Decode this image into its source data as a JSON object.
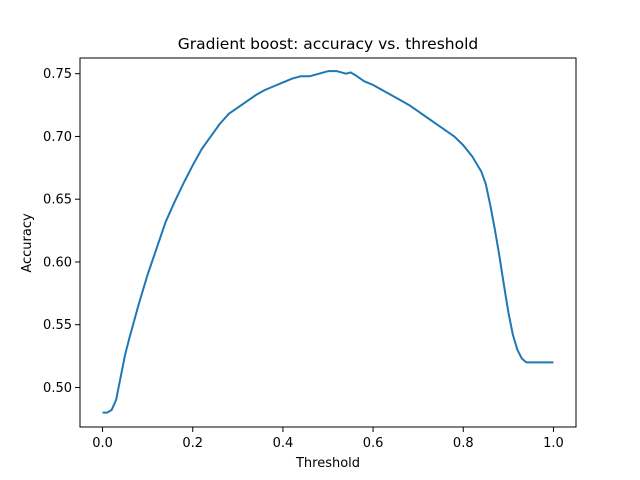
{
  "chart_data": {
    "type": "line",
    "title": "Gradient boost: accuracy vs. threshold",
    "xlabel": "Threshold",
    "ylabel": "Accuracy",
    "xlim": [
      -0.05,
      1.05
    ],
    "ylim": [
      0.4685,
      0.7625
    ],
    "grid": false,
    "legend": "none",
    "x_ticks": [
      0.0,
      0.2,
      0.4,
      0.6,
      0.8,
      1.0
    ],
    "x_tick_labels": [
      "0.0",
      "0.2",
      "0.4",
      "0.6",
      "0.8",
      "1.0"
    ],
    "y_ticks": [
      0.5,
      0.55,
      0.6,
      0.65,
      0.7,
      0.75
    ],
    "y_tick_labels": [
      "0.50",
      "0.55",
      "0.60",
      "0.65",
      "0.70",
      "0.75"
    ],
    "line_color": "#1f77b4",
    "series": [
      {
        "x": [
          0.0,
          0.01,
          0.02,
          0.03,
          0.04,
          0.05,
          0.06,
          0.08,
          0.1,
          0.12,
          0.14,
          0.16,
          0.18,
          0.2,
          0.22,
          0.24,
          0.26,
          0.28,
          0.3,
          0.32,
          0.34,
          0.36,
          0.38,
          0.4,
          0.42,
          0.44,
          0.46,
          0.48,
          0.5,
          0.52,
          0.53,
          0.54,
          0.55,
          0.56,
          0.58,
          0.6,
          0.62,
          0.64,
          0.66,
          0.68,
          0.7,
          0.72,
          0.74,
          0.76,
          0.78,
          0.8,
          0.82,
          0.84,
          0.85,
          0.86,
          0.87,
          0.88,
          0.89,
          0.9,
          0.91,
          0.92,
          0.93,
          0.94,
          0.95,
          0.96,
          0.98,
          1.0
        ],
        "y": [
          0.48,
          0.48,
          0.482,
          0.49,
          0.508,
          0.526,
          0.54,
          0.566,
          0.59,
          0.611,
          0.632,
          0.648,
          0.663,
          0.677,
          0.69,
          0.7,
          0.71,
          0.718,
          0.723,
          0.728,
          0.733,
          0.737,
          0.74,
          0.743,
          0.746,
          0.748,
          0.748,
          0.75,
          0.752,
          0.752,
          0.751,
          0.75,
          0.751,
          0.749,
          0.744,
          0.741,
          0.737,
          0.733,
          0.729,
          0.725,
          0.72,
          0.715,
          0.71,
          0.705,
          0.7,
          0.693,
          0.684,
          0.672,
          0.662,
          0.645,
          0.626,
          0.605,
          0.582,
          0.56,
          0.542,
          0.53,
          0.523,
          0.52,
          0.52,
          0.52,
          0.52,
          0.52
        ]
      }
    ]
  }
}
